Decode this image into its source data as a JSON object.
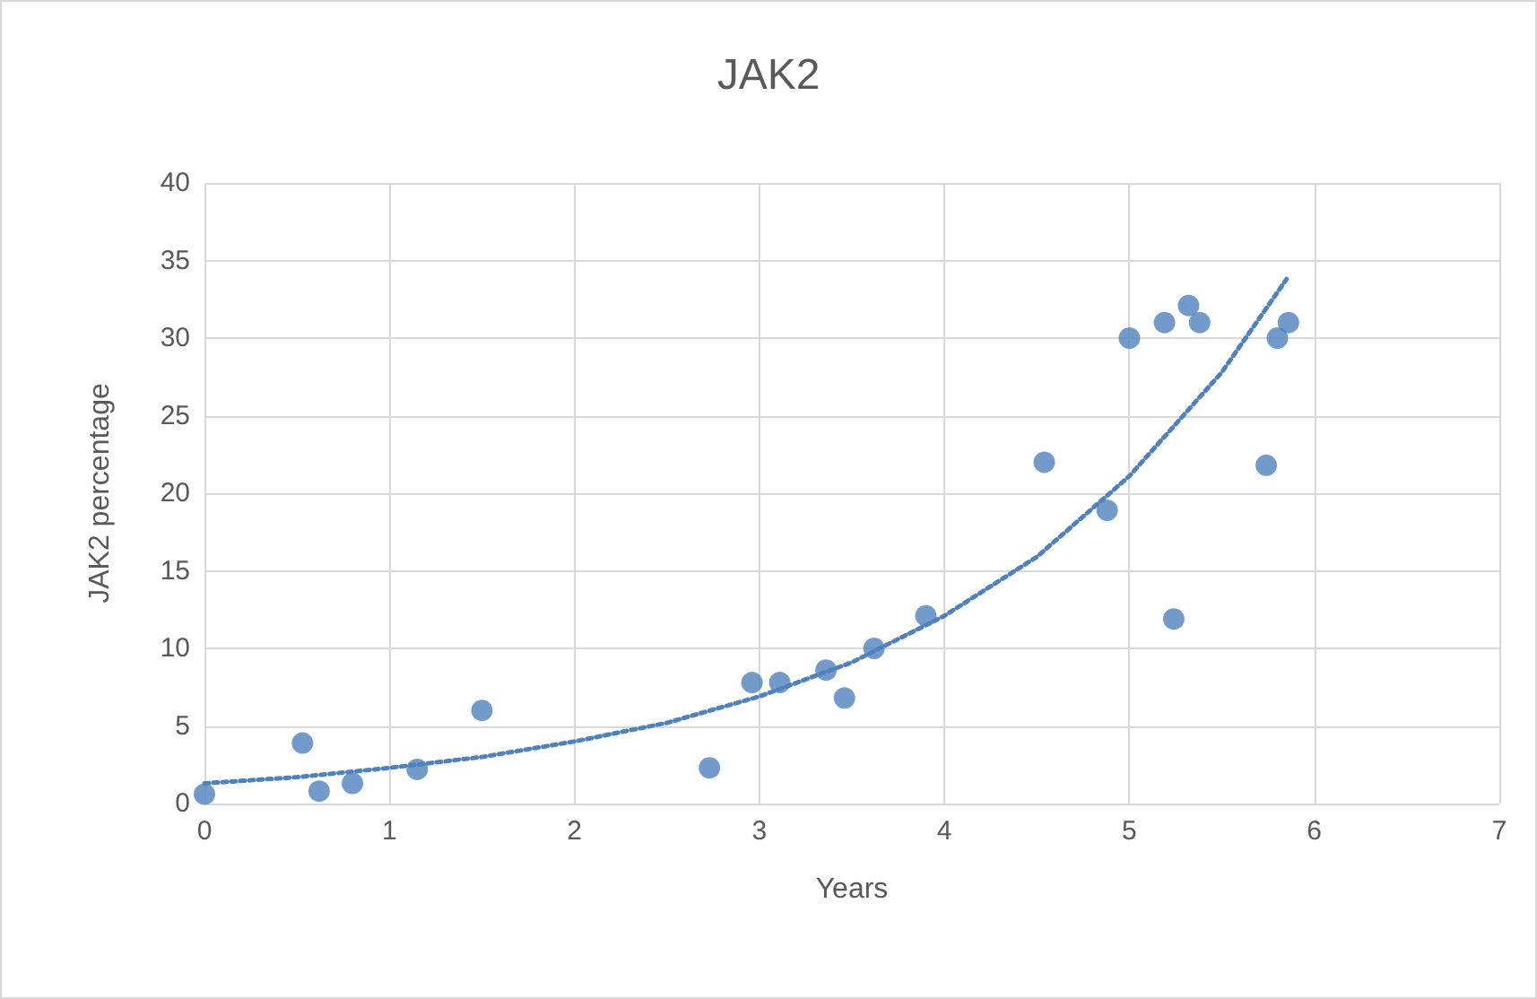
{
  "chart_data": {
    "type": "scatter",
    "title": "JAK2",
    "xlabel": "Years",
    "ylabel": "JAK2 percentage",
    "xlim": [
      0,
      7
    ],
    "ylim": [
      0,
      40
    ],
    "xticks": [
      0,
      1,
      2,
      3,
      4,
      5,
      6,
      7
    ],
    "yticks": [
      0,
      5,
      10,
      15,
      20,
      25,
      30,
      35,
      40
    ],
    "grid": true,
    "marker": "circle",
    "series": [
      {
        "color": "#4f81bd",
        "x": [
          0,
          0.53,
          0.62,
          0.8,
          1.15,
          1.5,
          2.73,
          2.96,
          3.11,
          3.36,
          3.46,
          3.62,
          3.9,
          4.54,
          4.88,
          5.0,
          5.19,
          5.24,
          5.32,
          5.38,
          5.74,
          5.8,
          5.86
        ],
        "values": [
          0.6,
          3.9,
          0.8,
          1.3,
          2.2,
          6.0,
          2.3,
          7.8,
          7.8,
          8.6,
          6.8,
          10,
          12.1,
          22,
          18.9,
          30,
          31,
          11.9,
          32.1,
          31,
          21.8,
          30,
          31
        ]
      },
      {
        "type": "line",
        "color": "#4f81bd",
        "line_style": "dotted",
        "marker": "none",
        "x": [
          0,
          0.5,
          1,
          1.5,
          2,
          2.5,
          3,
          3.5,
          4,
          4.5,
          5,
          5.5,
          5.85
        ],
        "values": [
          1.3,
          1.7,
          2.3,
          3.0,
          4.0,
          5.2,
          6.9,
          9.1,
          12.1,
          15.9,
          21.1,
          27.8,
          33.8
        ]
      }
    ]
  }
}
